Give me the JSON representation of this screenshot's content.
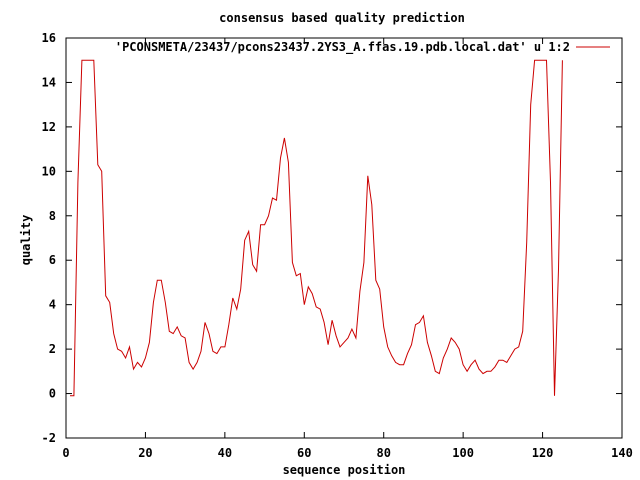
{
  "chart_data": {
    "type": "line",
    "title": "consensus based quality prediction",
    "xlabel": "sequence position",
    "ylabel": "quality",
    "xlim": [
      0,
      140
    ],
    "ylim": [
      -2,
      16
    ],
    "xticks": [
      0,
      20,
      40,
      60,
      80,
      100,
      120,
      140
    ],
    "yticks": [
      -2,
      0,
      2,
      4,
      6,
      8,
      10,
      12,
      14,
      16
    ],
    "grid": false,
    "legend_position": "top-right",
    "series": [
      {
        "name": "'PCONSMETA/23437/pcons23437.2YS3_A.ffas.19.pdb.local.dat' u 1:2",
        "color": "#cc0000",
        "x": [
          1,
          2,
          3,
          4,
          5,
          6,
          7,
          8,
          9,
          10,
          11,
          12,
          13,
          14,
          15,
          16,
          17,
          18,
          19,
          20,
          21,
          22,
          23,
          24,
          25,
          26,
          27,
          28,
          29,
          30,
          31,
          32,
          33,
          34,
          35,
          36,
          37,
          38,
          39,
          40,
          41,
          42,
          43,
          44,
          45,
          46,
          47,
          48,
          49,
          50,
          51,
          52,
          53,
          54,
          55,
          56,
          57,
          58,
          59,
          60,
          61,
          62,
          63,
          64,
          65,
          66,
          67,
          68,
          69,
          70,
          71,
          72,
          73,
          74,
          75,
          76,
          77,
          78,
          79,
          80,
          81,
          82,
          83,
          84,
          85,
          86,
          87,
          88,
          89,
          90,
          91,
          92,
          93,
          94,
          95,
          96,
          97,
          98,
          99,
          100,
          101,
          102,
          103,
          104,
          105,
          106,
          107,
          108,
          109,
          110,
          111,
          112,
          113,
          114,
          115,
          116,
          117,
          118,
          119,
          120,
          121,
          122,
          123,
          124,
          125
        ],
        "y": [
          -0.1,
          -0.1,
          9.5,
          15,
          15,
          15,
          15,
          10.3,
          10,
          4.4,
          4.1,
          2.7,
          2,
          1.9,
          1.6,
          2.1,
          1.1,
          1.4,
          1.2,
          1.6,
          2.3,
          4.1,
          5.1,
          5.1,
          4.1,
          2.8,
          2.7,
          3,
          2.6,
          2.5,
          1.4,
          1.1,
          1.4,
          1.9,
          3.2,
          2.7,
          1.9,
          1.8,
          2.1,
          2.1,
          3.1,
          4.3,
          3.8,
          4.7,
          6.9,
          7.3,
          5.8,
          5.5,
          7.6,
          7.6,
          8,
          8.8,
          8.7,
          10.6,
          11.5,
          10.4,
          5.9,
          5.3,
          5.4,
          4,
          4.8,
          4.5,
          3.9,
          3.8,
          3.2,
          2.2,
          3.3,
          2.6,
          2.1,
          2.3,
          2.5,
          2.9,
          2.5,
          4.6,
          5.9,
          9.8,
          8.5,
          5.1,
          4.7,
          3,
          2.1,
          1.7,
          1.4,
          1.3,
          1.3,
          1.8,
          2.2,
          3.1,
          3.2,
          3.5,
          2.3,
          1.7,
          1,
          0.9,
          1.6,
          2,
          2.5,
          2.3,
          2,
          1.3,
          1,
          1.3,
          1.5,
          1.1,
          0.9,
          1,
          1,
          1.2,
          1.5,
          1.5,
          1.4,
          1.7,
          2,
          2.1,
          2.8,
          6.8,
          13,
          15,
          15,
          15,
          15,
          9.5,
          -0.1,
          5.6,
          15
        ]
      }
    ]
  }
}
